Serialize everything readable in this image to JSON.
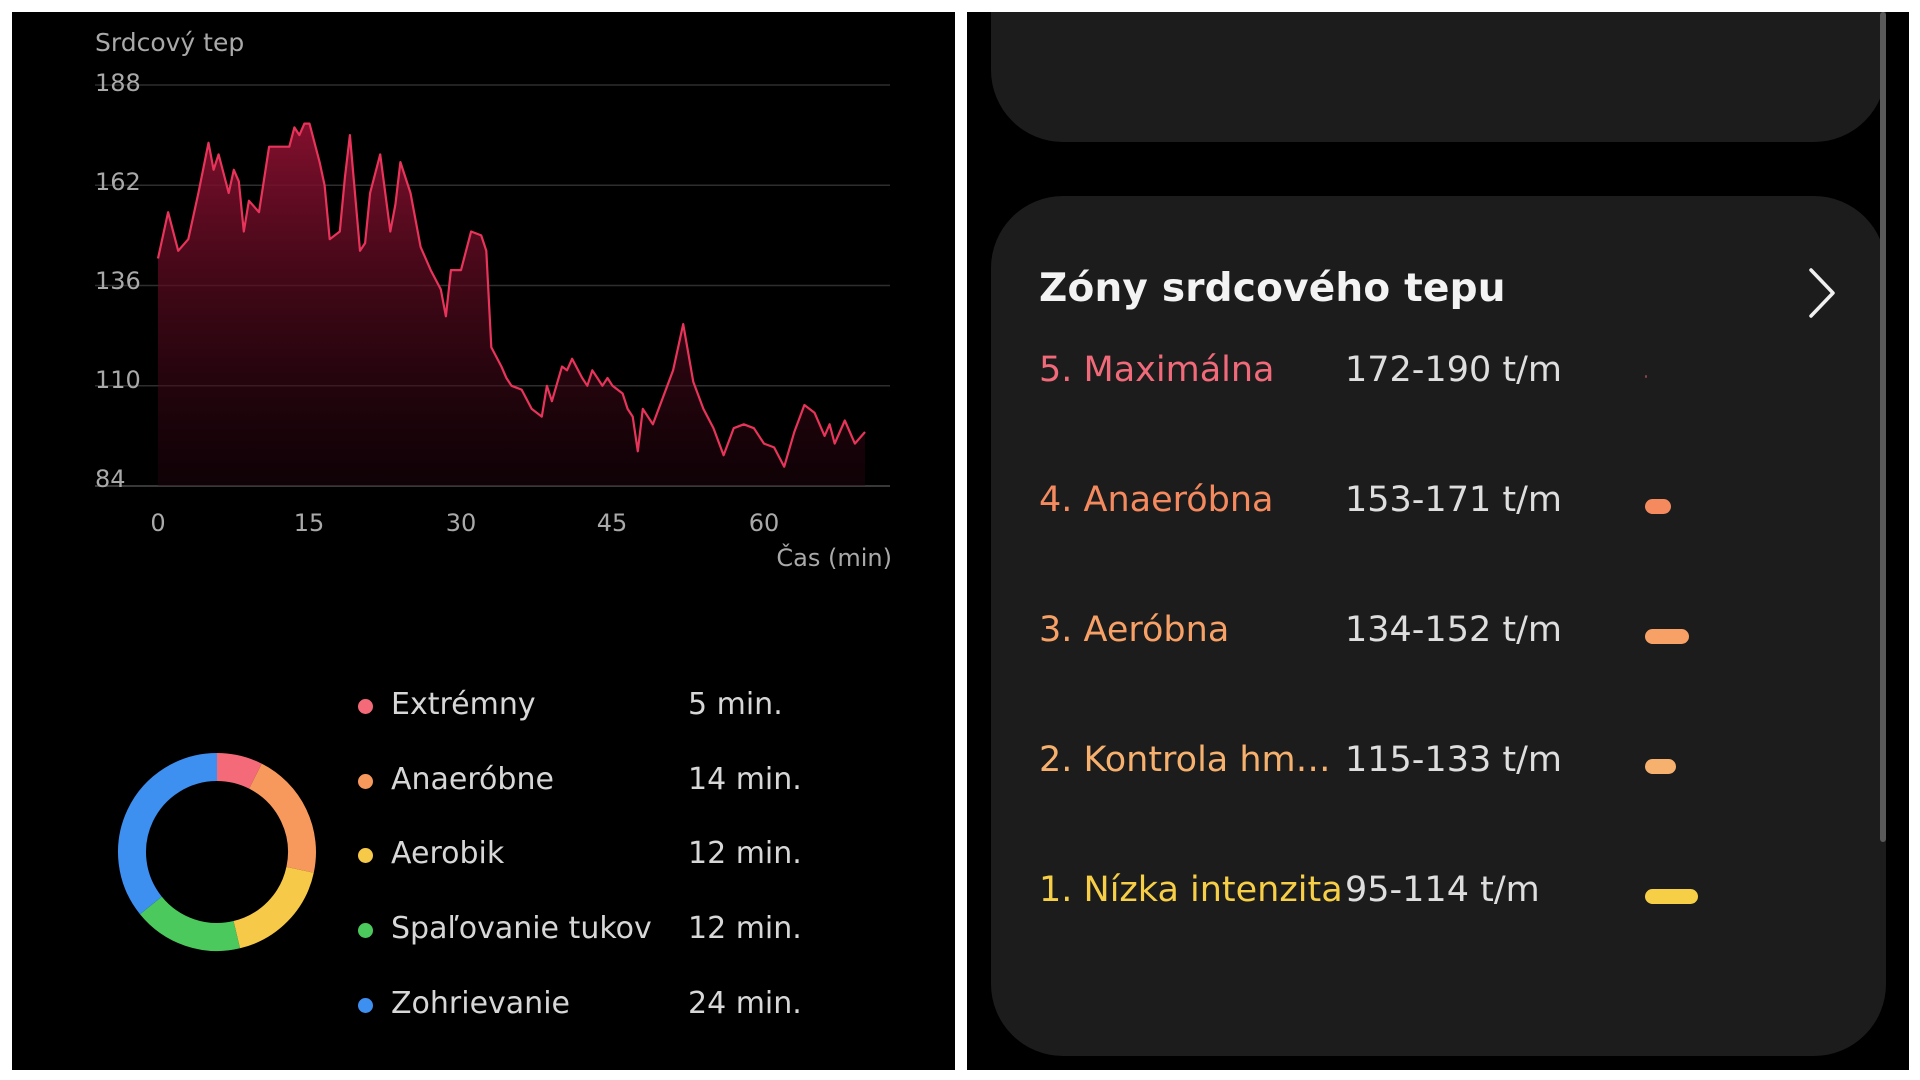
{
  "heart_rate_chart": {
    "title": "Srdcový tep",
    "y_ticks": [
      "188",
      "162",
      "136",
      "110",
      "84"
    ],
    "x_ticks": [
      "0",
      "15",
      "30",
      "45",
      "60"
    ],
    "x_axis_label": "Čas (min)",
    "line_color": "#e8345a",
    "fill_color": "#8a1030"
  },
  "chart_data": {
    "type": "area",
    "ylabel": "Srdcový tep",
    "xlabel": "Čas (min)",
    "xlim": [
      0,
      70
    ],
    "ylim": [
      84,
      188
    ],
    "grid": true,
    "x": [
      0,
      1,
      2,
      3,
      4,
      5,
      5.5,
      6,
      7,
      7.5,
      8,
      8.5,
      9,
      10,
      11,
      12,
      13,
      13.5,
      14,
      14.5,
      15,
      16,
      16.5,
      17,
      18,
      18.5,
      19,
      20,
      20.5,
      21,
      22,
      23,
      23.5,
      24,
      25,
      26,
      27,
      28,
      28.5,
      29,
      30,
      31,
      32,
      32.5,
      33,
      34,
      34.5,
      35,
      36,
      37,
      38,
      38.5,
      39,
      40,
      40.5,
      41,
      42,
      42.5,
      43,
      43.5,
      44,
      44.5,
      45,
      46,
      46.5,
      47,
      47.5,
      48,
      49,
      50,
      51,
      52,
      53,
      54,
      55,
      56,
      57,
      58,
      59,
      60,
      61,
      62,
      63,
      64,
      65,
      66,
      66.5,
      67,
      68,
      69,
      70
    ],
    "values": [
      143,
      155,
      145,
      148,
      160,
      173,
      166,
      170,
      160,
      166,
      163,
      150,
      158,
      155,
      172,
      172,
      172,
      177,
      175,
      178,
      178,
      168,
      162,
      148,
      150,
      164,
      175,
      145,
      147,
      160,
      170,
      150,
      157,
      168,
      160,
      146,
      140,
      135,
      128,
      140,
      140,
      150,
      149,
      145,
      120,
      115,
      112,
      110,
      109,
      104,
      102,
      110,
      106,
      115,
      114,
      117,
      112,
      110,
      114,
      112,
      110,
      112,
      110,
      108,
      104,
      102,
      93,
      104,
      100,
      107,
      114,
      126,
      111,
      104,
      99,
      92,
      99,
      100,
      99,
      95,
      94,
      89,
      98,
      105,
      103,
      97,
      100,
      95,
      101,
      95,
      98
    ],
    "series": [
      {
        "name": "",
        "color": "#e8345a"
      }
    ]
  },
  "zone_time": {
    "rows": [
      {
        "label": "Extrémny",
        "value": "5 min.",
        "color": "#f56a78"
      },
      {
        "label": "Anaeróbne",
        "value": "14 min.",
        "color": "#f7995c"
      },
      {
        "label": "Aerobik",
        "value": "12 min.",
        "color": "#f7c948"
      },
      {
        "label": "Spaľovanie tukov",
        "value": "12 min.",
        "color": "#4cc95d"
      },
      {
        "label": "Zohrievanie",
        "value": "24 min.",
        "color": "#3d8ff0"
      }
    ],
    "minutes": [
      5,
      14,
      12,
      12,
      24
    ]
  },
  "zones_card": {
    "title": "Zóny srdcového tepu",
    "chevron_icon": "chevron-right-icon",
    "zones": [
      {
        "name": "5. Maximálna",
        "range": "172-190 t/m",
        "color": "#f06a7a",
        "bar_fraction": 0.0
      },
      {
        "name": "4. Anaeróbna",
        "range": "153-171 t/m",
        "color": "#f58a5e",
        "bar_fraction": 0.58
      },
      {
        "name": "3. Aeróbna",
        "range": "134-152 t/m",
        "color": "#f7a167",
        "bar_fraction": 1.0
      },
      {
        "name": "2. Kontrola hm…",
        "range": "115-133 t/m",
        "color": "#f7b16e",
        "bar_fraction": 0.7
      },
      {
        "name": "1. Nízka intenzita",
        "range": "95-114 t/m",
        "color": "#f7cf47",
        "bar_fraction": 1.2
      }
    ]
  }
}
